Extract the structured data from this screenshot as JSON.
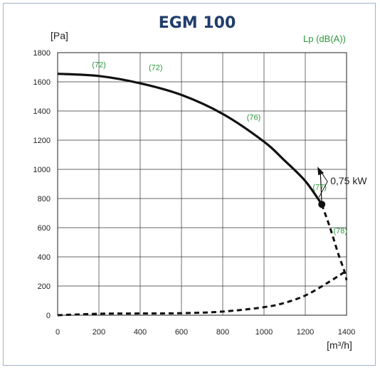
{
  "chart_data": {
    "type": "line",
    "title": "EGM 100",
    "ylabel": "[Pa]",
    "xlabel": "[m³/h]",
    "right_label": "Lp (dB(A))",
    "xlim": [
      0,
      1400
    ],
    "ylim": [
      0,
      1800
    ],
    "xticks": [
      0,
      200,
      400,
      600,
      800,
      1000,
      1200,
      1400
    ],
    "yticks": [
      0,
      200,
      400,
      600,
      800,
      1000,
      1200,
      1400,
      1600,
      1800
    ],
    "grid": true,
    "series": [
      {
        "style": "solid",
        "x": [
          0,
          200,
          400,
          600,
          800,
          1000,
          1100,
          1200,
          1280
        ],
        "y": [
          1655,
          1640,
          1590,
          1510,
          1380,
          1190,
          1060,
          920,
          760
        ]
      },
      {
        "style": "dashed",
        "x": [
          1280,
          1320,
          1360,
          1390,
          1400
        ],
        "y": [
          760,
          600,
          420,
          300,
          240
        ]
      },
      {
        "style": "dashed",
        "x": [
          0,
          200,
          400,
          600,
          800,
          1000,
          1100,
          1200,
          1300,
          1400
        ],
        "y": [
          0,
          10,
          12,
          14,
          25,
          55,
          85,
          135,
          215,
          305
        ]
      }
    ],
    "point": {
      "x": 1280,
      "y": 760
    },
    "annotations": [
      {
        "text": "(72)",
        "x": 200,
        "y": 1700
      },
      {
        "text": "(72)",
        "x": 475,
        "y": 1680
      },
      {
        "text": "(76)",
        "x": 950,
        "y": 1340
      },
      {
        "text": "(77)",
        "x": 1270,
        "y": 860
      },
      {
        "text": "(78)",
        "x": 1370,
        "y": 560
      }
    ],
    "power_label": "0,75 kW"
  }
}
